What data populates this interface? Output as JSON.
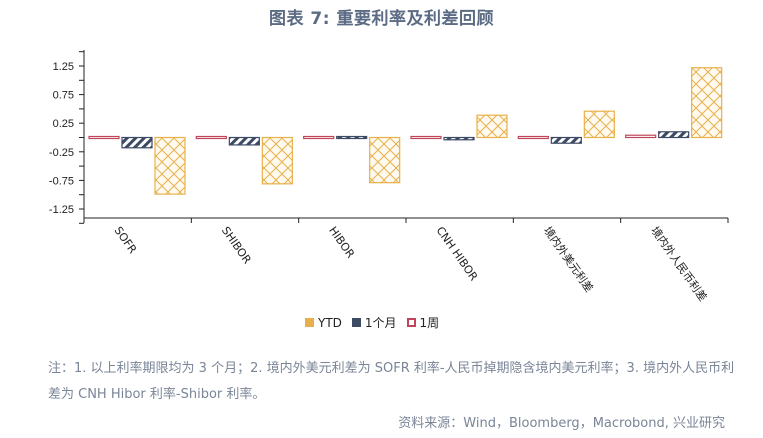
{
  "title": "图表 7: 重要利率及利差回顾",
  "legend": [
    {
      "label": "YTD",
      "color": "#e8b04a",
      "pattern": "crosshatch"
    },
    {
      "label": "1个月",
      "color": "#3d4a63",
      "pattern": "diagonal"
    },
    {
      "label": "1周",
      "color": "#c0455a",
      "pattern": "solid-outline"
    }
  ],
  "note": "注：1. 以上利率期限均为 3 个月；2. 境内外美元利差为 SOFR 利率-人民币掉期隐含境内美元利率；3. 境内外人民币利差为 CNH Hibor 利率-Shibor 利率。",
  "source": "资料来源：Wind，Bloomberg，Macrobond, 兴业研究",
  "chart_data": {
    "type": "bar",
    "title": "图表 7: 重要利率及利差回顾",
    "xlabel": "",
    "ylabel": "",
    "ylim": [
      -1.5,
      1.5
    ],
    "yticks": [
      1.25,
      0.75,
      0.25,
      -0.25,
      -0.75,
      -1.25
    ],
    "grid": false,
    "legend_position": "bottom",
    "categories": [
      "SOFR",
      "SHIBOR",
      "HIBOR",
      "CNH HIBOR",
      "境内外美元利差",
      "境内外人民币利差"
    ],
    "series": [
      {
        "name": "1周",
        "values": [
          0.0,
          0.01,
          -0.01,
          0.02,
          0.0,
          0.04
        ]
      },
      {
        "name": "1个月",
        "values": [
          -0.18,
          -0.13,
          0.03,
          -0.04,
          -0.1,
          0.1
        ]
      },
      {
        "name": "YTD",
        "values": [
          -0.99,
          -0.81,
          -0.79,
          0.39,
          0.46,
          1.22
        ]
      }
    ]
  }
}
